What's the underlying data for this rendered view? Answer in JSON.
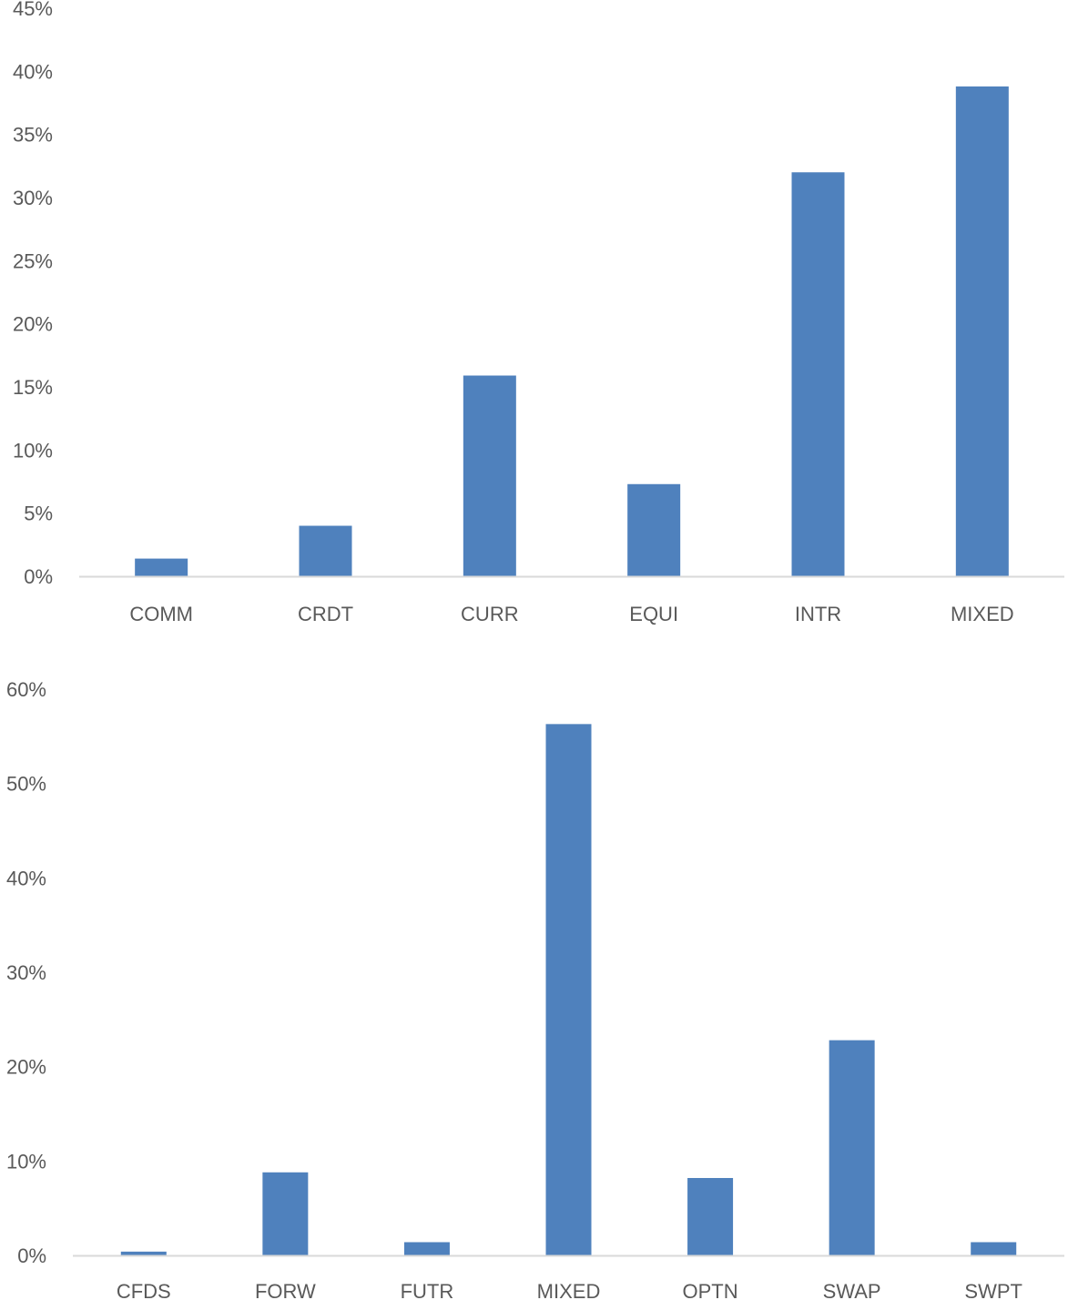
{
  "chart_data": [
    {
      "type": "bar",
      "categories": [
        "COMM",
        "CRDT",
        "CURR",
        "EQUI",
        "INTR",
        "MIXED"
      ],
      "values": [
        1.4,
        4.0,
        15.9,
        7.3,
        32.0,
        38.8
      ],
      "ylim": [
        0,
        45
      ],
      "y_ticks": [
        0,
        5,
        10,
        15,
        20,
        25,
        30,
        35,
        40,
        45
      ],
      "y_tick_format": "percent",
      "grid": false,
      "color": "#4f81bd",
      "axis_color": "#d9d9d9",
      "text_color": "#595959"
    },
    {
      "type": "bar",
      "categories": [
        "CFDS",
        "FORW",
        "FUTR",
        "MIXED",
        "OPTN",
        "SWAP",
        "SWPT"
      ],
      "values": [
        0.4,
        8.8,
        1.4,
        56.3,
        8.2,
        22.8,
        1.4
      ],
      "ylim": [
        0,
        60
      ],
      "y_ticks": [
        0,
        10,
        20,
        30,
        40,
        50,
        60
      ],
      "y_tick_format": "percent",
      "grid": false,
      "color": "#4f81bd",
      "axis_color": "#d9d9d9",
      "text_color": "#595959"
    }
  ]
}
